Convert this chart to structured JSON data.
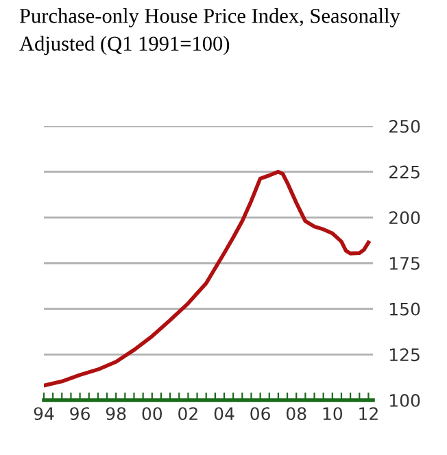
{
  "chart_data": {
    "type": "line",
    "title": "Purchase-only House Price Index, Seasonally Adjusted (Q1 1991=100)",
    "x": [
      1994,
      1995,
      1996,
      1997,
      1998,
      1999,
      2000,
      2001,
      2002,
      2003,
      2004,
      2004.5,
      2005,
      2005.5,
      2006,
      2006.5,
      2007,
      2007.25,
      2007.5,
      2008,
      2008.5,
      2009,
      2009.5,
      2010,
      2010.5,
      2010.75,
      2011,
      2011.5,
      2011.75,
      2012
    ],
    "series": [
      {
        "color": "#b01010",
        "values": [
          108,
          110.3,
          113.8,
          116.8,
          121,
          127.5,
          135,
          143.8,
          153,
          164,
          180.5,
          189,
          198,
          209,
          221.3,
          223,
          225,
          223.8,
          219,
          208,
          198,
          195,
          193.5,
          191.3,
          186.8,
          181.8,
          180.3,
          180.5,
          182.3,
          186.3
        ]
      }
    ],
    "xlim": [
      1994,
      2012.25
    ],
    "ylim": [
      100,
      250
    ],
    "xticks": [
      {
        "value": 1994,
        "label": "94"
      },
      {
        "value": 1994.5,
        "label": null
      },
      {
        "value": 1995,
        "label": null
      },
      {
        "value": 1995.5,
        "label": null
      },
      {
        "value": 1996,
        "label": "96"
      },
      {
        "value": 1996.5,
        "label": null
      },
      {
        "value": 1997,
        "label": null
      },
      {
        "value": 1997.5,
        "label": null
      },
      {
        "value": 1998,
        "label": "98"
      },
      {
        "value": 1998.5,
        "label": null
      },
      {
        "value": 1999,
        "label": null
      },
      {
        "value": 1999.5,
        "label": null
      },
      {
        "value": 2000,
        "label": "00"
      },
      {
        "value": 2000.5,
        "label": null
      },
      {
        "value": 2001,
        "label": null
      },
      {
        "value": 2001.5,
        "label": null
      },
      {
        "value": 2002,
        "label": "02"
      },
      {
        "value": 2002.5,
        "label": null
      },
      {
        "value": 2003,
        "label": null
      },
      {
        "value": 2003.5,
        "label": null
      },
      {
        "value": 2004,
        "label": "04"
      },
      {
        "value": 2004.5,
        "label": null
      },
      {
        "value": 2005,
        "label": null
      },
      {
        "value": 2005.5,
        "label": null
      },
      {
        "value": 2006,
        "label": "06"
      },
      {
        "value": 2006.5,
        "label": null
      },
      {
        "value": 2007,
        "label": null
      },
      {
        "value": 2007.5,
        "label": null
      },
      {
        "value": 2008,
        "label": "08"
      },
      {
        "value": 2008.5,
        "label": null
      },
      {
        "value": 2009,
        "label": null
      },
      {
        "value": 2009.5,
        "label": null
      },
      {
        "value": 2010,
        "label": "10"
      },
      {
        "value": 2010.5,
        "label": null
      },
      {
        "value": 2011,
        "label": null
      },
      {
        "value": 2011.5,
        "label": null
      },
      {
        "value": 2012,
        "label": "12"
      }
    ],
    "yticks": [
      100,
      125,
      150,
      175,
      200,
      225,
      250
    ],
    "grid": "y",
    "legend": false,
    "marker": "none",
    "line_style": "solid"
  }
}
